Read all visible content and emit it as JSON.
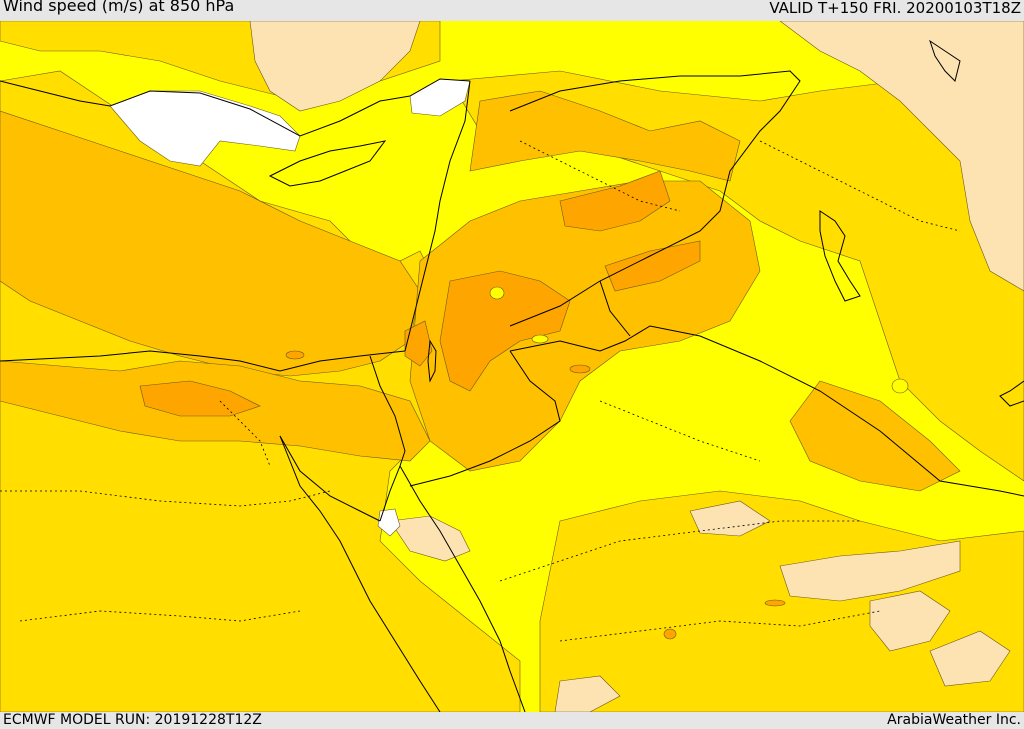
{
  "header": {
    "title": "Wind speed (m/s) at 850 hPa",
    "valid": "VALID T+150 FRI. 20200103T18Z"
  },
  "footer": {
    "model_run": "ECMWF MODEL RUN: 20191228T12Z",
    "credit": "ArabiaWeather Inc."
  },
  "colors": {
    "calm": "#ffffff",
    "lightest": "#fde3b2",
    "yellow": "#ffff00",
    "gold": "#ffde00",
    "amber": "#ffc000",
    "orange": "#ffa500",
    "deep_orange": "#ff9500",
    "contour": "#6b5a22",
    "border": "#000000"
  }
}
